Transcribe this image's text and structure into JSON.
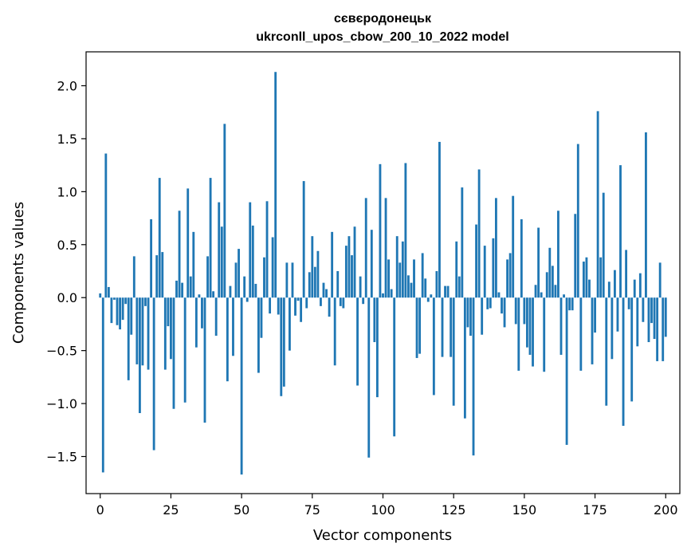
{
  "chart_data": {
    "type": "bar",
    "title": "сєвєродонецьк",
    "subtitle": "ukrconll_upos_cbow_200_10_2022 model",
    "xlabel": "Vector components",
    "ylabel": "Components values",
    "xlim": [
      -5,
      205
    ],
    "ylim": [
      -1.85,
      2.32
    ],
    "xticks": [
      0,
      25,
      50,
      75,
      100,
      125,
      150,
      175,
      200
    ],
    "yticks": [
      -1.5,
      -1.0,
      -0.5,
      0.0,
      0.5,
      1.0,
      1.5,
      2.0
    ],
    "ytick_labels": [
      "−1.5",
      "−1.0",
      "−0.5",
      "0.0",
      "0.5",
      "1.0",
      "1.5",
      "2.0"
    ],
    "color": "#1f77b4",
    "values": [
      0.04,
      -1.65,
      1.36,
      0.1,
      -0.24,
      -0.02,
      -0.26,
      -0.3,
      -0.21,
      -0.06,
      -0.78,
      -0.35,
      0.39,
      -0.63,
      -1.09,
      -0.64,
      -0.08,
      -0.68,
      0.74,
      -1.44,
      0.4,
      1.13,
      0.43,
      -0.68,
      -0.27,
      -0.58,
      -1.05,
      0.16,
      0.82,
      0.14,
      -0.99,
      1.03,
      0.2,
      0.62,
      -0.47,
      0.03,
      -0.29,
      -1.18,
      0.39,
      1.13,
      0.06,
      -0.36,
      0.9,
      0.67,
      1.64,
      -0.79,
      0.11,
      -0.55,
      0.33,
      0.46,
      -1.67,
      0.2,
      -0.04,
      0.9,
      0.68,
      0.13,
      -0.71,
      -0.38,
      0.38,
      0.91,
      -0.15,
      0.57,
      2.13,
      -0.16,
      -0.93,
      -0.84,
      0.33,
      -0.5,
      0.33,
      -0.17,
      -0.03,
      -0.23,
      1.1,
      -0.1,
      0.24,
      0.58,
      0.29,
      0.44,
      -0.08,
      0.14,
      0.08,
      -0.18,
      0.62,
      -0.64,
      0.25,
      -0.08,
      -0.1,
      0.49,
      0.58,
      0.4,
      0.67,
      -0.83,
      0.2,
      -0.06,
      0.94,
      -1.51,
      0.64,
      -0.42,
      -0.94,
      1.26,
      0.04,
      0.94,
      0.36,
      0.08,
      -1.31,
      0.58,
      0.33,
      0.53,
      1.27,
      0.21,
      0.14,
      0.36,
      -0.57,
      -0.53,
      0.42,
      0.18,
      -0.04,
      0.03,
      -0.92,
      0.25,
      1.47,
      -0.56,
      0.11,
      0.11,
      -0.56,
      -1.02,
      0.53,
      0.2,
      1.04,
      -1.14,
      -0.28,
      -0.36,
      -1.49,
      0.69,
      1.21,
      -0.35,
      0.49,
      -0.11,
      -0.1,
      0.56,
      0.94,
      0.05,
      -0.15,
      -0.28,
      0.36,
      0.42,
      0.96,
      -0.25,
      -0.69,
      0.74,
      -0.25,
      -0.47,
      -0.54,
      -0.65,
      0.12,
      0.66,
      0.05,
      -0.7,
      0.24,
      0.47,
      0.3,
      0.12,
      0.82,
      -0.54,
      0.03,
      -1.39,
      -0.12,
      -0.12,
      0.79,
      1.45,
      -0.69,
      0.34,
      0.38,
      0.17,
      -0.63,
      -0.33,
      1.76,
      0.38,
      0.99,
      -1.02,
      0.15,
      -0.58,
      0.26,
      -0.32,
      1.25,
      -1.21,
      0.45,
      -0.11,
      -0.98,
      0.17,
      -0.46,
      0.23,
      -0.23,
      1.56,
      -0.42,
      -0.24,
      -0.39,
      -0.6,
      0.33,
      -0.6,
      -0.37
    ]
  }
}
